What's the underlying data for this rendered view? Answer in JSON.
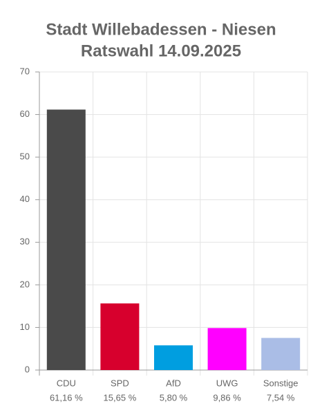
{
  "chart_data": {
    "type": "bar",
    "title": [
      "Stadt Willebadessen - Niesen",
      "Ratswahl 14.09.2025"
    ],
    "categories": [
      "CDU",
      "SPD",
      "AfD",
      "UWG",
      "Sonstige"
    ],
    "values": [
      61.16,
      15.65,
      5.8,
      9.86,
      7.54
    ],
    "value_labels": [
      "61,16 %",
      "15,65 %",
      "5,80 %",
      "9,86 %",
      "7,54 %"
    ],
    "colors": [
      "#4a4a4a",
      "#d7002d",
      "#009ee0",
      "#ff00ff",
      "#aabde6"
    ],
    "ylim": [
      0,
      70
    ],
    "yticks": [
      0,
      10,
      20,
      30,
      40,
      50,
      60,
      70
    ],
    "grid": true
  }
}
